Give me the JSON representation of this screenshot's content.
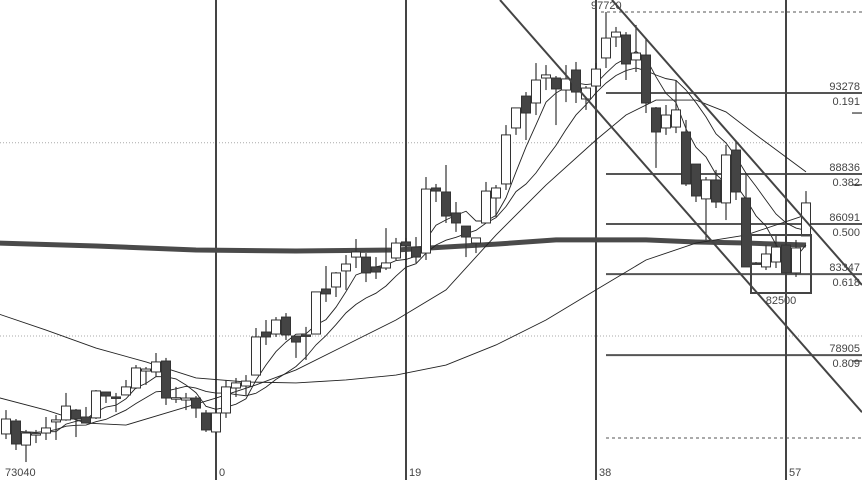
{
  "chart_data": {
    "type": "candlestick",
    "title": "",
    "xlabel": "",
    "ylabel": "",
    "ylim": [
      72055,
      98378
    ],
    "xlim": [
      -21.6,
      64.6
    ],
    "grid": true,
    "colors": {
      "bull_fill": "#ffffff",
      "bear_fill": "#444444",
      "outline": "#333333",
      "lines": "#444444"
    },
    "period_separators": [
      {
        "bar": 0,
        "label": "0"
      },
      {
        "bar": 19,
        "label": "19"
      },
      {
        "bar": 38,
        "label": "38"
      },
      {
        "bar": 57,
        "label": "57"
      }
    ],
    "start_label": "73040",
    "candles_ohlc": [
      [
        -21,
        74580,
        75890,
        74300,
        75400
      ],
      [
        -20,
        75290,
        75400,
        73700,
        74030
      ],
      [
        -19,
        73970,
        74800,
        73040,
        74630
      ],
      [
        -18,
        74580,
        74800,
        74080,
        74600
      ],
      [
        -17,
        74630,
        75510,
        74250,
        74910
      ],
      [
        -16,
        75240,
        75620,
        74250,
        75350
      ],
      [
        -15,
        75350,
        76830,
        75300,
        76110
      ],
      [
        -14,
        75890,
        75950,
        74410,
        75400
      ],
      [
        -13,
        75510,
        76060,
        75150,
        75180
      ],
      [
        -12,
        75460,
        76990,
        75400,
        76940
      ],
      [
        -11,
        76880,
        76900,
        76280,
        76660
      ],
      [
        -10,
        76610,
        76830,
        75780,
        76600
      ],
      [
        -9,
        76720,
        77540,
        76700,
        77160
      ],
      [
        -8,
        77100,
        78360,
        77050,
        78200
      ],
      [
        -7,
        78030,
        78250,
        77270,
        78140
      ],
      [
        -6,
        77980,
        79020,
        77700,
        78530
      ],
      [
        -5,
        78580,
        78750,
        76170,
        76550
      ],
      [
        -4,
        76550,
        77160,
        76280,
        76570
      ],
      [
        -3,
        76440,
        76830,
        75890,
        76550
      ],
      [
        -2,
        76550,
        76660,
        75460,
        76000
      ],
      [
        -1,
        75730,
        75890,
        74690,
        74800
      ],
      [
        0,
        74690,
        75890,
        74580,
        75730
      ],
      [
        1,
        75730,
        77540,
        75460,
        77160
      ],
      [
        2,
        77100,
        77650,
        76610,
        77380
      ],
      [
        3,
        77210,
        77810,
        76720,
        77480
      ],
      [
        4,
        77810,
        80390,
        77810,
        79900
      ],
      [
        5,
        80170,
        80830,
        79460,
        79900
      ],
      [
        6,
        80060,
        80990,
        79900,
        80830
      ],
      [
        7,
        80990,
        81210,
        79730,
        80010
      ],
      [
        8,
        79950,
        79950,
        78750,
        79620
      ],
      [
        9,
        80010,
        80450,
        78640,
        80000
      ],
      [
        10,
        80060,
        82370,
        80060,
        82370
      ],
      [
        11,
        82530,
        83790,
        81820,
        82260
      ],
      [
        12,
        82640,
        83460,
        82090,
        83410
      ],
      [
        13,
        83520,
        84390,
        82480,
        83900
      ],
      [
        14,
        84280,
        85270,
        83680,
        84560
      ],
      [
        15,
        84280,
        84500,
        82910,
        83410
      ],
      [
        16,
        83740,
        84280,
        83080,
        83460
      ],
      [
        17,
        83680,
        85870,
        83570,
        83960
      ],
      [
        18,
        84230,
        85330,
        84120,
        85050
      ],
      [
        19,
        85110,
        85330,
        84560,
        84890
      ],
      [
        20,
        84830,
        85380,
        83960,
        84280
      ],
      [
        21,
        84500,
        88670,
        84120,
        88010
      ],
      [
        22,
        88070,
        88290,
        87300,
        87900
      ],
      [
        23,
        87850,
        89330,
        86150,
        86530
      ],
      [
        24,
        86700,
        87300,
        85660,
        86150
      ],
      [
        25,
        85980,
        85980,
        84280,
        85380
      ],
      [
        26,
        85050,
        85330,
        84500,
        85330
      ],
      [
        27,
        86150,
        88400,
        86150,
        87900
      ],
      [
        28,
        87520,
        88230,
        86480,
        88070
      ],
      [
        29,
        88290,
        91520,
        87960,
        90980
      ],
      [
        30,
        91360,
        92460,
        90980,
        92460
      ],
      [
        31,
        93110,
        93330,
        90700,
        92180
      ],
      [
        32,
        92730,
        94920,
        92070,
        93990
      ],
      [
        33,
        94100,
        94810,
        93440,
        94270
      ],
      [
        34,
        94100,
        94210,
        91520,
        93500
      ],
      [
        35,
        93440,
        94810,
        92780,
        94050
      ],
      [
        36,
        94540,
        94980,
        92730,
        93330
      ],
      [
        37,
        92950,
        93660,
        92350,
        93550
      ],
      [
        38,
        93660,
        94920,
        93660,
        94590
      ],
      [
        39,
        95200,
        97720,
        94650,
        96290
      ],
      [
        40,
        96350,
        96900,
        95800,
        96620
      ],
      [
        41,
        96460,
        96620,
        93990,
        94870
      ],
      [
        42,
        95090,
        97010,
        94430,
        95470
      ],
      [
        43,
        95360,
        96290,
        92180,
        92730
      ],
      [
        44,
        92460,
        92510,
        89170,
        91140
      ],
      [
        45,
        91360,
        92620,
        90980,
        92070
      ],
      [
        46,
        91410,
        93990,
        91080,
        92350
      ],
      [
        47,
        91140,
        91800,
        88180,
        88290
      ],
      [
        48,
        89380,
        89380,
        87300,
        87630
      ],
      [
        49,
        87470,
        88670,
        85220,
        88510
      ],
      [
        50,
        88510,
        89060,
        86970,
        87300
      ],
      [
        51,
        87250,
        90430,
        86310,
        89880
      ],
      [
        52,
        90150,
        90590,
        87410,
        87850
      ],
      [
        53,
        87520,
        88890,
        83740,
        83740
      ],
      [
        54,
        83960,
        84010,
        83900,
        83950
      ],
      [
        55,
        83740,
        84940,
        83570,
        84450
      ],
      [
        56,
        84010,
        85490,
        83680,
        84830
      ],
      [
        57,
        84940,
        85380,
        83410,
        83410
      ],
      [
        58,
        83410,
        85220,
        83190,
        84780
      ],
      [
        59,
        85440,
        87900,
        85440,
        87250
      ]
    ],
    "moving_averages": [
      {
        "style": "thick",
        "points": [
          [
            -22,
            85050
          ],
          [
            -12,
            84890
          ],
          [
            -2,
            84670
          ],
          [
            8,
            84610
          ],
          [
            18,
            84670
          ],
          [
            23,
            84830
          ],
          [
            28,
            84990
          ],
          [
            34,
            85220
          ],
          [
            38,
            85220
          ],
          [
            43,
            85220
          ],
          [
            48,
            85110
          ],
          [
            53,
            85050
          ],
          [
            59,
            84940
          ]
        ]
      },
      {
        "style": "thin",
        "points": [
          [
            -22,
            81210
          ],
          [
            -17,
            80280
          ],
          [
            -12,
            79290
          ],
          [
            -7,
            78530
          ],
          [
            -2,
            77650
          ],
          [
            3,
            77430
          ],
          [
            8,
            77380
          ],
          [
            13,
            77540
          ],
          [
            18,
            77810
          ],
          [
            23,
            78360
          ],
          [
            28,
            79460
          ],
          [
            33,
            80830
          ],
          [
            38,
            82480
          ],
          [
            43,
            84120
          ],
          [
            48,
            85050
          ],
          [
            53,
            85490
          ],
          [
            59,
            86590
          ]
        ]
      },
      {
        "style": "thin",
        "points": [
          [
            -22,
            76610
          ],
          [
            -17,
            75890
          ],
          [
            -13,
            75180
          ],
          [
            -9,
            75070
          ],
          [
            -4,
            75890
          ],
          [
            0,
            76550
          ],
          [
            4,
            77270
          ],
          [
            8,
            78090
          ],
          [
            13,
            79460
          ],
          [
            18,
            80830
          ],
          [
            23,
            82480
          ],
          [
            28,
            85490
          ],
          [
            33,
            88230
          ],
          [
            38,
            90700
          ],
          [
            41,
            92070
          ],
          [
            44,
            92890
          ],
          [
            48,
            92890
          ],
          [
            51,
            92240
          ],
          [
            54,
            90980
          ],
          [
            59,
            88950
          ]
        ]
      },
      {
        "style": "thin",
        "period": 5
      },
      {
        "style": "thin",
        "period": 10
      }
    ],
    "high_marker": {
      "price": 97720,
      "label": "97720",
      "from_bar": 38.5
    },
    "low_marker": {
      "price": 74360,
      "from_bar": 39
    },
    "fib_levels": [
      {
        "price": 93278,
        "label": "93278",
        "ratio": "0.191"
      },
      {
        "price": 88836,
        "label": "88836",
        "ratio": "0.382"
      },
      {
        "price": 86091,
        "label": "86091",
        "ratio": "0.500"
      },
      {
        "price": 83347,
        "label": "83347",
        "ratio": "0.618"
      },
      {
        "price": 78905,
        "label": "78905",
        "ratio": "0.809"
      }
    ],
    "fib_from_bar": 39,
    "grid_levels": [
      90550,
      79950
    ],
    "channel_lines": [
      {
        "from": [
          28.4,
          98378
        ],
        "to": [
          64.6,
          75770
        ]
      },
      {
        "from": [
          39.6,
          98378
        ],
        "to": [
          64.6,
          82750
        ]
      }
    ],
    "range_box": {
      "from_bar": 54,
      "to_bar": 59,
      "top": 85490,
      "bottom": 82310,
      "label": "82500"
    }
  }
}
